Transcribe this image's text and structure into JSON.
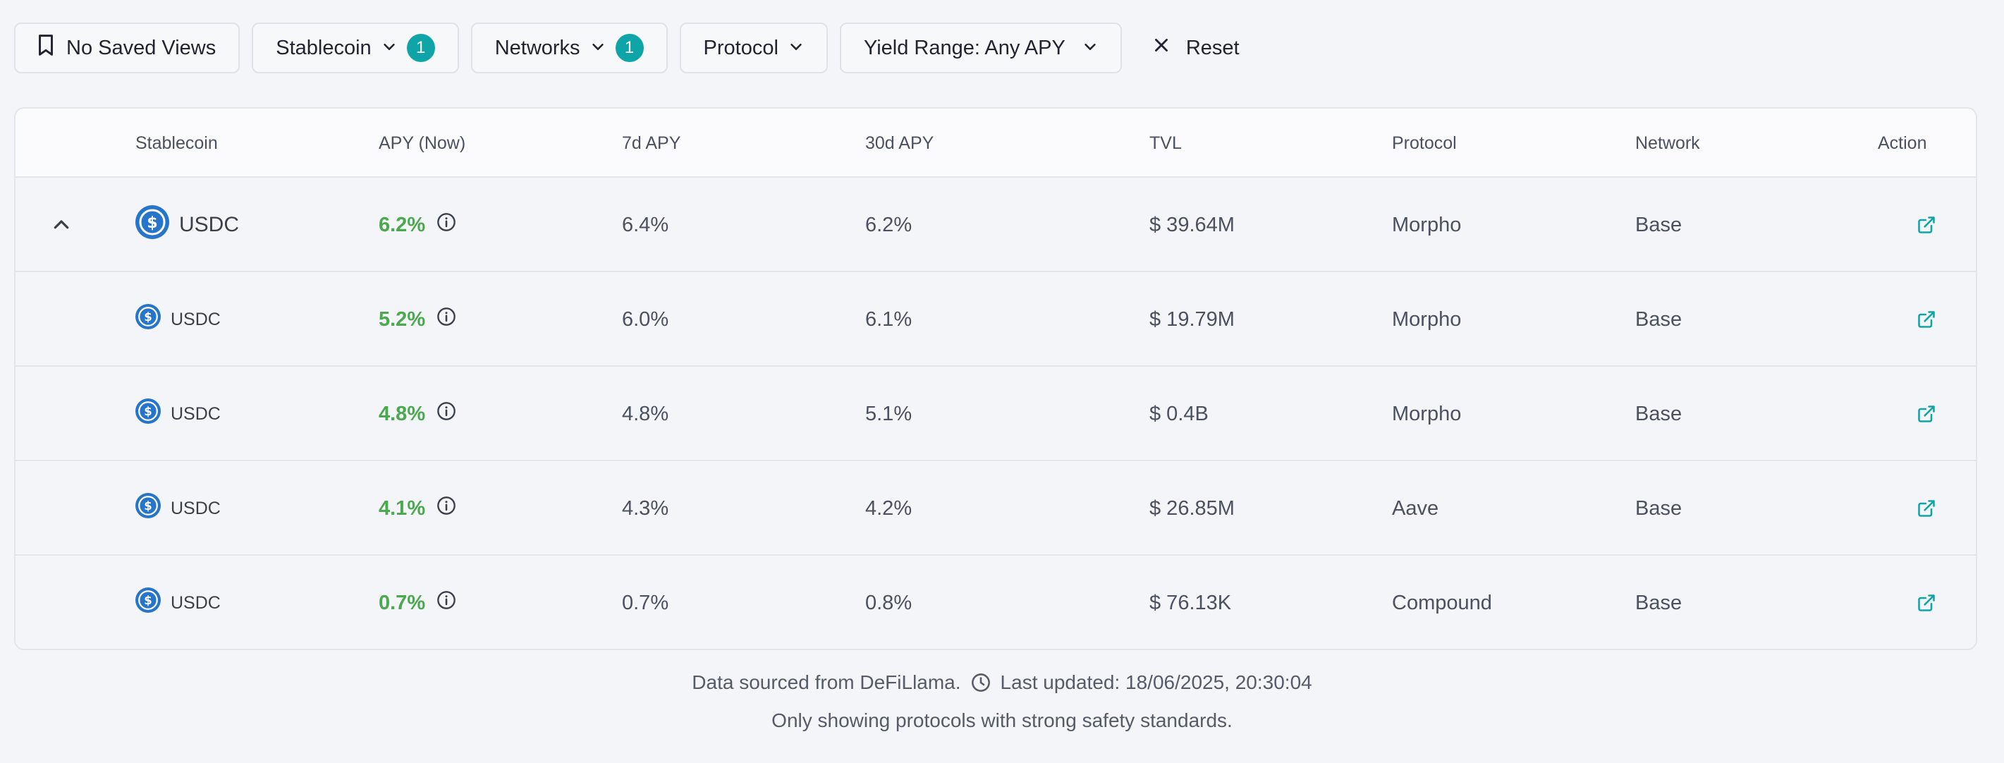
{
  "filters": {
    "saved_views": "No Saved Views",
    "stablecoin": "Stablecoin",
    "stablecoin_count": "1",
    "networks": "Networks",
    "networks_count": "1",
    "protocol": "Protocol",
    "yield_range": "Yield Range: Any APY",
    "reset": "Reset"
  },
  "table": {
    "columns": [
      "Stablecoin",
      "APY (Now)",
      "7d APY",
      "30d APY",
      "TVL",
      "Protocol",
      "Network",
      "Action"
    ],
    "rows": [
      {
        "coin": "USDC",
        "apy": "6.2%",
        "apy7d": "6.4%",
        "apy30d": "6.2%",
        "tvl": "$ 39.64M",
        "protocol": "Morpho",
        "network": "Base"
      },
      {
        "coin": "USDC",
        "apy": "5.2%",
        "apy7d": "6.0%",
        "apy30d": "6.1%",
        "tvl": "$ 19.79M",
        "protocol": "Morpho",
        "network": "Base"
      },
      {
        "coin": "USDC",
        "apy": "4.8%",
        "apy7d": "4.8%",
        "apy30d": "5.1%",
        "tvl": "$ 0.4B",
        "protocol": "Morpho",
        "network": "Base"
      },
      {
        "coin": "USDC",
        "apy": "4.1%",
        "apy7d": "4.3%",
        "apy30d": "4.2%",
        "tvl": "$ 26.85M",
        "protocol": "Aave",
        "network": "Base"
      },
      {
        "coin": "USDC",
        "apy": "0.7%",
        "apy7d": "0.7%",
        "apy30d": "0.8%",
        "tvl": "$ 76.13K",
        "protocol": "Compound",
        "network": "Base"
      }
    ]
  },
  "footer": {
    "source": "Data sourced from DeFiLlama.",
    "updated": "Last updated: 18/06/2025, 20:30:04",
    "note": "Only showing protocols with strong safety standards."
  },
  "colors": {
    "accent_teal": "#0fa5a8",
    "apy_green": "#4aa84f",
    "usdc_blue": "#2775ca"
  },
  "icons": [
    "bookmark-icon",
    "chevron-down-icon",
    "close-icon",
    "chevron-up-icon",
    "usdc-icon",
    "info-icon",
    "external-link-icon",
    "clock-icon"
  ]
}
